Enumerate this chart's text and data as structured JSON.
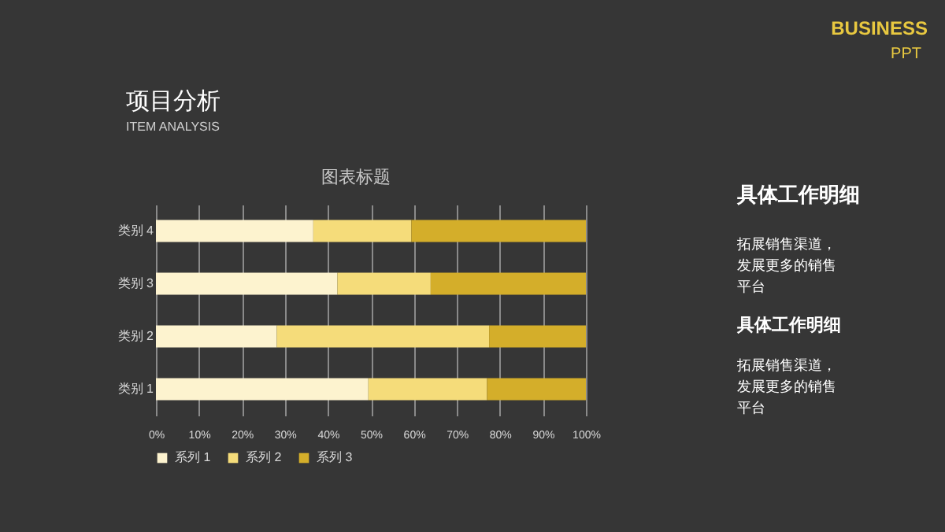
{
  "chart_data": {
    "type": "bar",
    "orientation": "horizontal",
    "stacked": true,
    "title": "图表标题",
    "categories": [
      "类别 4",
      "类别 3",
      "类别 2",
      "类别 1"
    ],
    "series": [
      {
        "name": "系列 1",
        "color": "#fdf3cf",
        "values": [
          36.6,
          42.2,
          28.1,
          49.4
        ]
      },
      {
        "name": "系列 2",
        "color": "#f5dc7a",
        "values": [
          22.8,
          21.7,
          49.4,
          27.6
        ]
      },
      {
        "name": "系列 3",
        "color": "#d4ae2a",
        "values": [
          40.6,
          36.1,
          22.5,
          23.0
        ]
      }
    ],
    "xlim": [
      0,
      100
    ],
    "xticks": [
      {
        "value": 0,
        "label": "0%"
      },
      {
        "value": 10,
        "label": "10%"
      },
      {
        "value": 20,
        "label": "20%"
      },
      {
        "value": 30,
        "label": "30%"
      },
      {
        "value": 40,
        "label": "40%"
      },
      {
        "value": 50,
        "label": "50%"
      },
      {
        "value": 60,
        "label": "60%"
      },
      {
        "value": 70,
        "label": "70%"
      },
      {
        "value": 80,
        "label": "80%"
      },
      {
        "value": 90,
        "label": "90%"
      },
      {
        "value": 100,
        "label": "100%"
      }
    ],
    "grid": "x",
    "legend": "bottom",
    "annotations": [
      "项目分析",
      "ITEM ANALYSIS",
      "BUSINESS",
      "PPT",
      "具体工作明细",
      "拓展销售渠道，发展更多的销售平台",
      "具体工作明细",
      "拓展销售渠道，发展更多的销售平台"
    ]
  }
}
